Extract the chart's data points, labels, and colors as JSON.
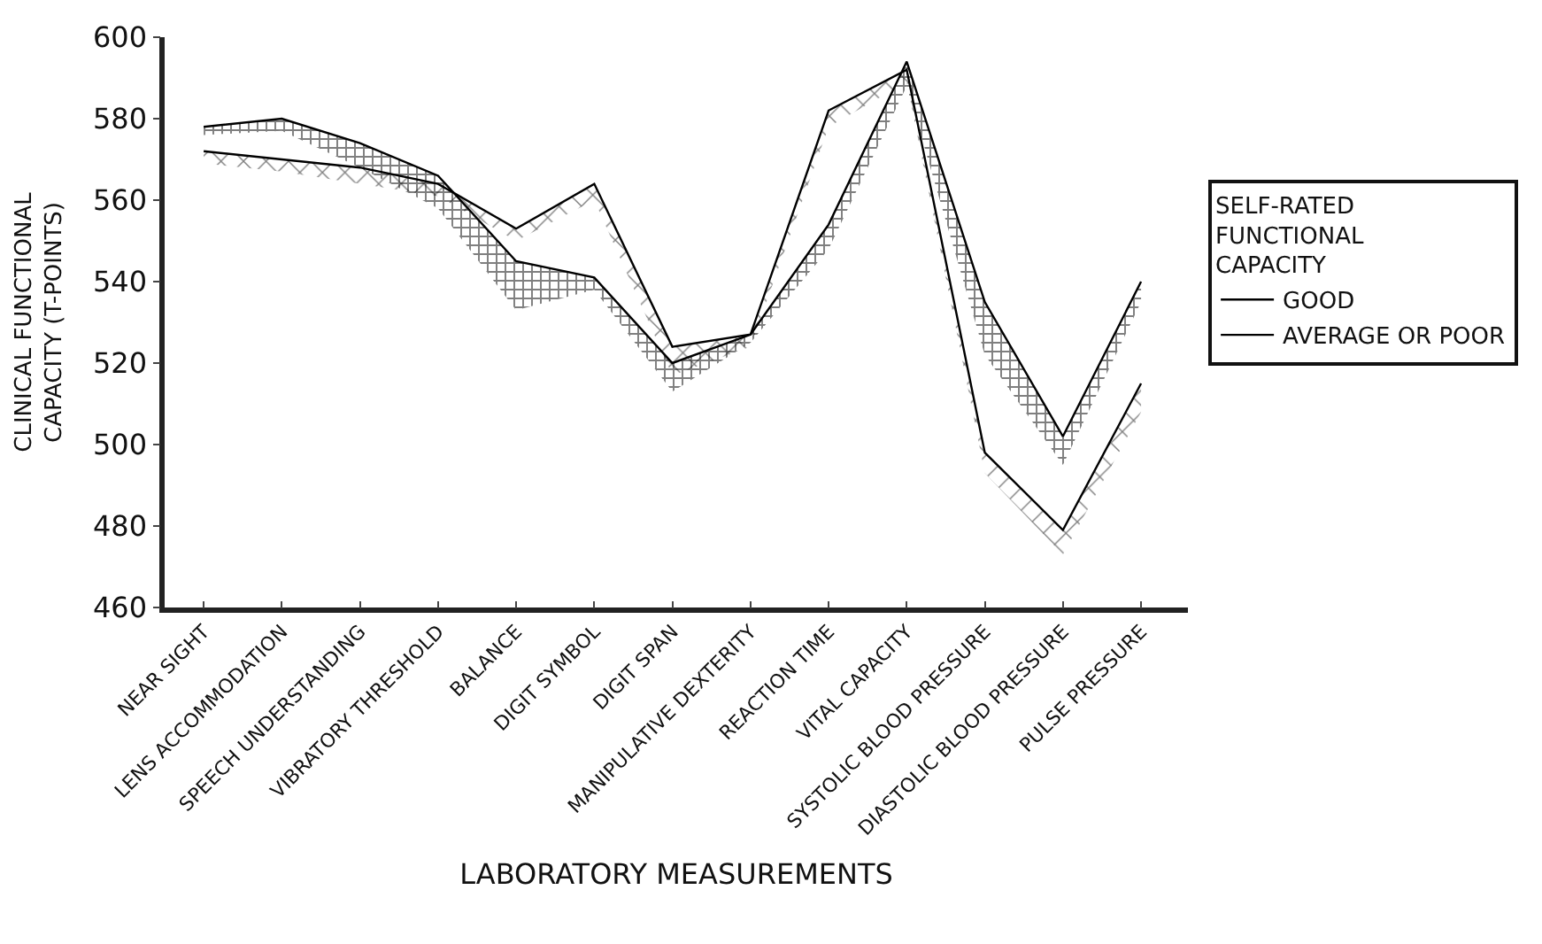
{
  "chart_data": {
    "type": "line",
    "xlabel": "LABORATORY MEASUREMENTS",
    "ylabel": "CLINICAL FUNCTIONAL CAPACITY (T-POINTS)",
    "legend_title": "SELF-RATED FUNCTIONAL CAPACITY",
    "categories": [
      "NEAR SIGHT",
      "LENS ACCOMMODATION",
      "SPEECH UNDERSTANDING",
      "VIBRATORY THRESHOLD",
      "BALANCE",
      "DIGIT SYMBOL",
      "DIGIT SPAN",
      "MANIPULATIVE DEXTERITY",
      "REACTION TIME",
      "VITAL CAPACITY",
      "SYSTOLIC BLOOD PRESSURE",
      "DIASTOLIC BLOOD PRESSURE",
      "PULSE PRESSURE"
    ],
    "series": [
      {
        "name": "GOOD",
        "color": "#000000",
        "values": [
          578,
          580,
          574,
          566,
          545,
          541,
          520,
          527,
          554,
          594,
          535,
          502,
          540
        ],
        "upper": [
          578,
          580,
          574,
          566,
          545,
          541,
          520,
          527,
          554,
          594,
          535,
          502,
          540
        ],
        "lower": [
          576,
          577,
          568,
          558,
          533,
          538,
          513,
          525,
          548,
          588,
          522,
          495,
          535
        ]
      },
      {
        "name": "AVERAGE OR POOR",
        "color": "#000000",
        "values": [
          572,
          570,
          568,
          564,
          553,
          564,
          524,
          527,
          582,
          592,
          498,
          479,
          515
        ],
        "upper": [
          572,
          570,
          568,
          564,
          553,
          564,
          524,
          527,
          582,
          592,
          498,
          479,
          515
        ],
        "lower": [
          569,
          567,
          564,
          561,
          550,
          560,
          517,
          524,
          578,
          589,
          493,
          473,
          508
        ]
      }
    ],
    "ylim": [
      460,
      600
    ],
    "yticks": [
      460,
      480,
      500,
      520,
      540,
      560,
      580,
      600
    ],
    "legend": "right",
    "marker": "none",
    "line_style": "solid"
  }
}
